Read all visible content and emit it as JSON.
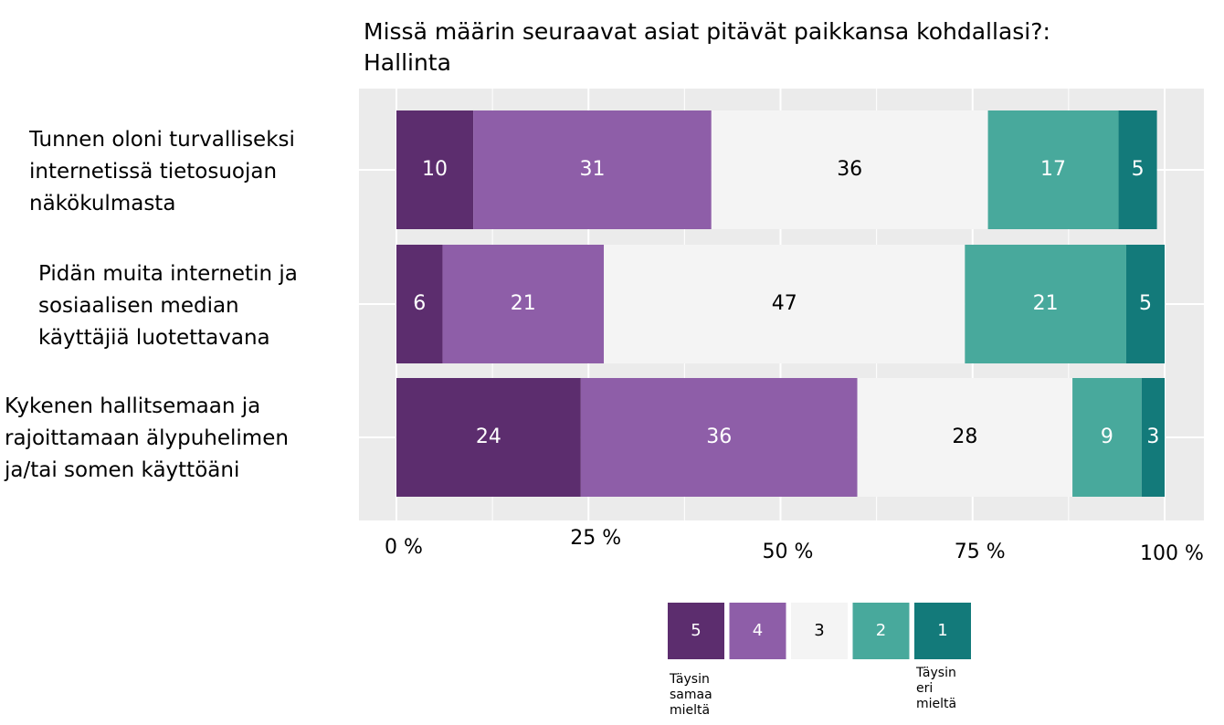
{
  "chart_data": {
    "type": "stacked_bar_horizontal",
    "title": "Missä määrin seuraavat asiat pitävät paikkansa kohdallasi?:\nHallinta",
    "categories": [
      "Tunnen oloni turvalliseksi\ninternetissä tietosuojan\nnäkökulmasta",
      "Pidän muita internetin ja\nsosiaalisen median\nkäyttäjiä luotettavana",
      "Kykenen hallitsemaan ja\nrajoittamaan älypuhelimen\nja/tai somen käyttöäni"
    ],
    "series": [
      {
        "name": "5",
        "color": "#5c2d6e",
        "label_color": "#ffffff",
        "values": [
          10,
          6,
          24
        ]
      },
      {
        "name": "4",
        "color": "#8e5ea8",
        "label_color": "#ffffff",
        "values": [
          31,
          21,
          36
        ]
      },
      {
        "name": "3",
        "color": "#f4f4f4",
        "label_color": "#000000",
        "values": [
          36,
          47,
          28
        ]
      },
      {
        "name": "2",
        "color": "#48a99c",
        "label_color": "#ffffff",
        "values": [
          17,
          21,
          9
        ]
      },
      {
        "name": "1",
        "color": "#137a7a",
        "label_color": "#ffffff",
        "values": [
          5,
          5,
          3
        ]
      }
    ],
    "xlim": [
      0,
      100
    ],
    "xticks": [
      {
        "value": 0,
        "label": "0 %"
      },
      {
        "value": 25,
        "label": "25 %"
      },
      {
        "value": 50,
        "label": "50 %"
      },
      {
        "value": 75,
        "label": "75 %"
      },
      {
        "value": 100,
        "label": "100 %"
      }
    ],
    "grid": true,
    "legend_notes": [
      "Täysin\nsamaa\nmieltä",
      "Täysin\neri\nmieltä"
    ]
  }
}
